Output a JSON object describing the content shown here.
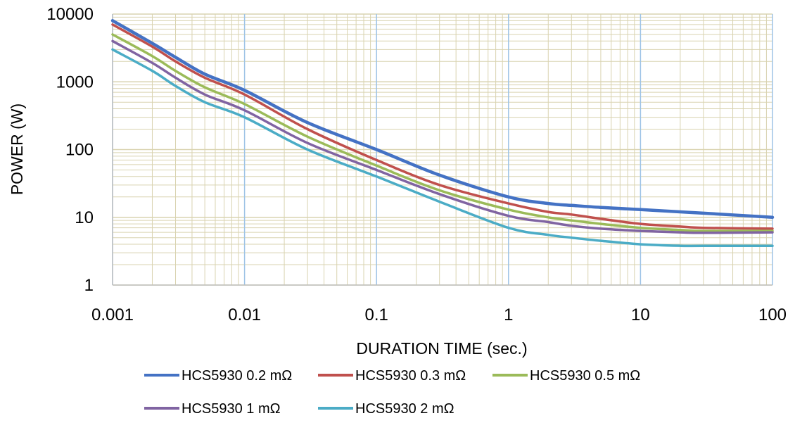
{
  "chart_data": {
    "type": "line",
    "title": "",
    "xlabel": "DURATION TIME (sec.)",
    "ylabel": "POWER (W)",
    "x_scale": "log",
    "y_scale": "log",
    "xlim": [
      0.001,
      100
    ],
    "ylim": [
      1,
      10000
    ],
    "x_ticks": [
      0.001,
      0.01,
      0.1,
      1,
      10,
      100
    ],
    "x_tick_labels": [
      "0.001",
      "0.01",
      "0.1",
      "1",
      "10",
      "100"
    ],
    "y_ticks": [
      1,
      10,
      100,
      1000,
      10000
    ],
    "y_tick_labels": [
      "1",
      "10",
      "100",
      "1000",
      "10000"
    ],
    "grid": true,
    "legend_position": "bottom",
    "colors": {
      "major_x_grid": "#9dc3e6",
      "minor_grid": "#d9d3b0",
      "axis": "#bfbfbf"
    },
    "series": [
      {
        "name": "HCS5930 0.2 mΩ",
        "color": "#4472c4",
        "x": [
          0.001,
          0.002,
          0.003,
          0.005,
          0.01,
          0.03,
          0.1,
          0.3,
          1,
          2,
          3,
          5,
          10,
          30,
          100
        ],
        "y": [
          8000,
          3700,
          2300,
          1300,
          750,
          250,
          100,
          42,
          20,
          16,
          15,
          14,
          13,
          11.5,
          10
        ]
      },
      {
        "name": "HCS5930 0.3 mΩ",
        "color": "#c0504d",
        "x": [
          0.001,
          0.002,
          0.003,
          0.005,
          0.01,
          0.03,
          0.1,
          0.3,
          1,
          2,
          3,
          5,
          10,
          20,
          30,
          100
        ],
        "y": [
          7000,
          3300,
          2000,
          1150,
          650,
          200,
          70,
          30,
          16,
          12,
          11,
          9.5,
          8,
          7.3,
          7,
          6.8
        ]
      },
      {
        "name": "HCS5930 0.5 mΩ",
        "color": "#9bbb59",
        "x": [
          0.001,
          0.002,
          0.003,
          0.005,
          0.01,
          0.03,
          0.1,
          0.3,
          1,
          2,
          3,
          5,
          10,
          20,
          30,
          100
        ],
        "y": [
          5000,
          2400,
          1450,
          830,
          470,
          155,
          58,
          25,
          13,
          10,
          9,
          8,
          7,
          6.5,
          6.3,
          6.3
        ]
      },
      {
        "name": "HCS5930 1 mΩ",
        "color": "#8064a2",
        "x": [
          0.001,
          0.002,
          0.003,
          0.005,
          0.01,
          0.03,
          0.1,
          0.3,
          1,
          2,
          3,
          5,
          10,
          20,
          30,
          100
        ],
        "y": [
          4000,
          1900,
          1150,
          650,
          380,
          125,
          50,
          22,
          10.5,
          8.5,
          7.5,
          6.8,
          6.3,
          6,
          5.9,
          6
        ]
      },
      {
        "name": "HCS5930 2 mΩ",
        "color": "#4bacc6",
        "x": [
          0.001,
          0.002,
          0.003,
          0.005,
          0.01,
          0.03,
          0.1,
          0.3,
          1,
          2,
          3,
          5,
          10,
          20,
          30,
          100
        ],
        "y": [
          3000,
          1450,
          870,
          500,
          300,
          100,
          40,
          17,
          7,
          5.5,
          5,
          4.5,
          4,
          3.8,
          3.8,
          3.8
        ]
      }
    ]
  }
}
